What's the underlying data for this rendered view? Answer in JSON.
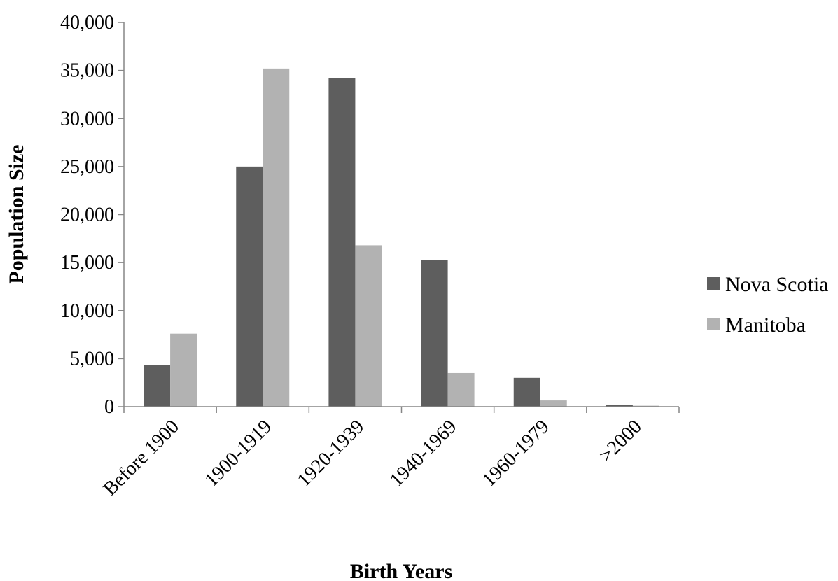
{
  "chart_data": {
    "type": "bar",
    "title": "",
    "xlabel": "Birth Years",
    "ylabel": "Population Size",
    "categories": [
      "Before 1900",
      "1900-1919",
      "1920-1939",
      "1940-1969",
      "1960-1979",
      ">2000"
    ],
    "series": [
      {
        "name": "Nova Scotia",
        "color": "#5e5e5e",
        "values": [
          4300,
          25000,
          34200,
          15300,
          3000,
          150
        ]
      },
      {
        "name": "Manitoba",
        "color": "#b2b2b2",
        "values": [
          7600,
          35200,
          16800,
          3500,
          650,
          100
        ]
      }
    ],
    "ylim": [
      0,
      40000
    ],
    "yticks": [
      0,
      5000,
      10000,
      15000,
      20000,
      25000,
      30000,
      35000,
      40000
    ],
    "ytick_labels": [
      "0",
      "5,000",
      "10,000",
      "15,000",
      "20,000",
      "25,000",
      "30,000",
      "35,000",
      "40,000"
    ],
    "grid": false,
    "legend_position": "right"
  }
}
